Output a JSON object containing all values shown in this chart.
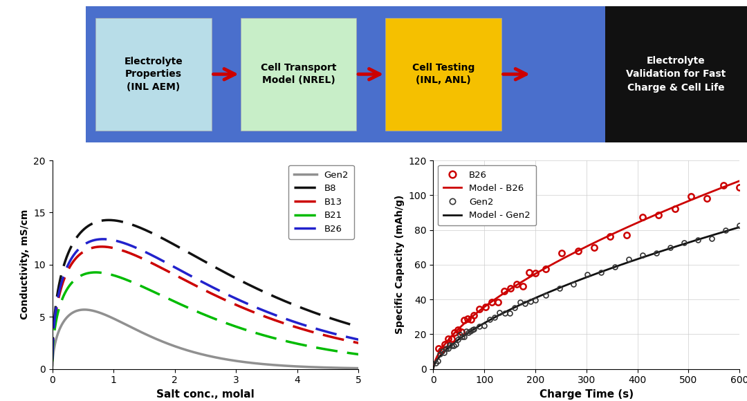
{
  "top_panel": {
    "bg_color": "#4466cc",
    "black_panel_color": "#111111",
    "box1_color": "#b8dde8",
    "box2_color": "#c8eec8",
    "box3_color": "#f5c000",
    "box1_text": "Electrolyte\nProperties\n(INL AEM)",
    "box2_text": "Cell Transport\nModel (NREL)",
    "box3_text": "Cell Testing\n(INL, ANL)",
    "box4_text": "Electrolyte\nValidation for Fast\nCharge & Cell Life",
    "arrow_color": "#cc0000"
  },
  "left_plot": {
    "xlabel": "Salt conc., molal",
    "ylabel": "Conductivity, mS/cm",
    "xlim": [
      0,
      5
    ],
    "ylim": [
      0,
      20
    ],
    "xticks": [
      0,
      1,
      2,
      3,
      4,
      5
    ],
    "yticks": [
      0,
      5,
      10,
      15,
      20
    ]
  },
  "right_plot": {
    "xlabel": "Charge Time (s)",
    "ylabel": "Specific Capacity (mAh/g)",
    "xlim": [
      0,
      600
    ],
    "ylim": [
      0,
      120
    ],
    "xticks": [
      0,
      100,
      200,
      300,
      400,
      500,
      600
    ],
    "yticks": [
      0,
      20,
      40,
      60,
      80,
      100,
      120
    ]
  }
}
